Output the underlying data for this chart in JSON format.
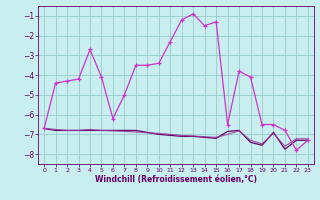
{
  "xlabel": "Windchill (Refroidissement éolien,°C)",
  "xlim": [
    -0.5,
    23.5
  ],
  "ylim": [
    -8.5,
    -0.5
  ],
  "yticks": [
    -8,
    -7,
    -6,
    -5,
    -4,
    -3,
    -2,
    -1
  ],
  "xticks": [
    0,
    1,
    2,
    3,
    4,
    5,
    6,
    7,
    8,
    9,
    10,
    11,
    12,
    13,
    14,
    15,
    16,
    17,
    18,
    19,
    20,
    21,
    22,
    23
  ],
  "bg_color": "#c8eef0",
  "grid_color": "#99cccc",
  "line_color_main": "#cc33cc",
  "line_color_flat1": "#660066",
  "line_color_flat2": "#993399",
  "series1": [
    -6.7,
    -4.4,
    -4.3,
    -4.2,
    -2.7,
    -4.1,
    -6.2,
    -5.0,
    -3.5,
    -3.5,
    -3.4,
    -2.3,
    -1.2,
    -0.9,
    -1.5,
    -1.3,
    -6.5,
    -3.8,
    -4.1,
    -6.5,
    -6.5,
    -6.8,
    -7.8,
    -7.3
  ],
  "series2": [
    -6.7,
    -6.8,
    -6.8,
    -6.8,
    -6.8,
    -6.8,
    -6.8,
    -6.8,
    -6.8,
    -6.9,
    -7.0,
    -7.05,
    -7.1,
    -7.1,
    -7.15,
    -7.2,
    -6.85,
    -6.8,
    -7.4,
    -7.55,
    -6.9,
    -7.75,
    -7.3,
    -7.3
  ],
  "series3": [
    -6.7,
    -6.75,
    -6.8,
    -6.8,
    -6.75,
    -6.8,
    -6.82,
    -6.85,
    -6.88,
    -6.92,
    -6.95,
    -7.0,
    -7.05,
    -7.08,
    -7.12,
    -7.15,
    -7.0,
    -6.82,
    -7.3,
    -7.48,
    -6.95,
    -7.6,
    -7.22,
    -7.22
  ]
}
